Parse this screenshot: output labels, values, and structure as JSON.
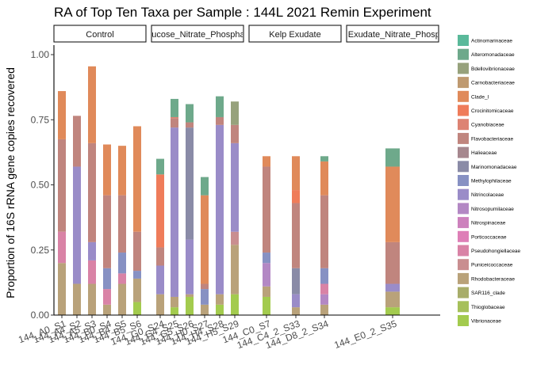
{
  "chart_data": {
    "type": "bar",
    "stacked": true,
    "faceted": true,
    "title": "RA of Top Ten Taxa per Sample : 144L 2021 Remin Experiment",
    "xlabel": "",
    "ylabel": "Proportion of 16S rRNA gene copies recovered",
    "ylim": [
      0,
      1.07
    ],
    "y_ticks": [
      "0.00",
      "0.25",
      "0.50",
      "0.75",
      "1.00"
    ],
    "y_tick_values": [
      0,
      0.25,
      0.5,
      0.75,
      1.0
    ],
    "legend_position": "right",
    "grid": false,
    "facets": [
      {
        "label": "Control",
        "samples": [
          {
            "label": "144_A0_S1",
            "segments": [
              [
                "Rhodobacteraceae",
                0.2
              ],
              [
                "Pseudohongiellaceae",
                0.12
              ],
              [
                "Flavobacteriaceae",
                0.355
              ],
              [
                "Clade_I",
                0.185
              ]
            ]
          },
          {
            "label": "144_A4_S2",
            "segments": [
              [
                "Rhodobacteraceae",
                0.12
              ],
              [
                "Nitrincolaceae",
                0.45
              ],
              [
                "Flavobacteriaceae",
                0.195
              ]
            ]
          },
          {
            "label": "144_A5_S3",
            "segments": [
              [
                "Rhodobacteraceae",
                0.12
              ],
              [
                "Pseudohongiellaceae",
                0.09
              ],
              [
                "Nitrincolaceae",
                0.07
              ],
              [
                "Flavobacteriaceae",
                0.38
              ],
              [
                "Clade_I",
                0.295
              ]
            ]
          },
          {
            "label": "144_B0_S4",
            "segments": [
              [
                "Rhodobacteraceae",
                0.04
              ],
              [
                "Pseudohongiellaceae",
                0.06
              ],
              [
                "Methylophilaceae",
                0.08
              ],
              [
                "Flavobacteriaceae",
                0.28
              ],
              [
                "Clade_I",
                0.195
              ]
            ]
          },
          {
            "label": "144_B4_S5",
            "segments": [
              [
                "Rhodobacteraceae",
                0.12
              ],
              [
                "Pseudohongiellaceae",
                0.04
              ],
              [
                "Methylophilaceae",
                0.08
              ],
              [
                "Flavobacteriaceae",
                0.22
              ],
              [
                "Clade_I",
                0.19
              ]
            ]
          },
          {
            "label": "144_B5_S6",
            "segments": [
              [
                "Vibrionaceae",
                0.05
              ],
              [
                "Rhodobacteraceae",
                0.09
              ],
              [
                "Methylophilaceae",
                0.03
              ],
              [
                "Flavobacteriaceae",
                0.15
              ],
              [
                "Clade_I",
                0.405
              ]
            ]
          }
        ]
      },
      {
        "label": "Glucose_Nitrate_Phosphate",
        "samples": [
          {
            "label": "144_G0_S24",
            "segments": [
              [
                "Rhodobacteraceae",
                0.08
              ],
              [
                "Nitrincolaceae",
                0.11
              ],
              [
                "Flavobacteriaceae",
                0.07
              ],
              [
                "Crocinitomicaceae",
                0.28
              ],
              [
                "Alteromonadaceae",
                0.06
              ]
            ]
          },
          {
            "label": "144_G4_S25",
            "segments": [
              [
                "Vibrionaceae",
                0.03
              ],
              [
                "Rhodobacteraceae",
                0.04
              ],
              [
                "Nitrincolaceae",
                0.65
              ],
              [
                "Flavobacteriaceae",
                0.035
              ],
              [
                "Cyanobiaceae",
                0.005
              ],
              [
                "Alteromonadaceae",
                0.07
              ]
            ]
          },
          {
            "label": "144_G5_S26",
            "segments": [
              [
                "Vibrionaceae",
                0.07
              ],
              [
                "Rhodobacteraceae",
                0.01
              ],
              [
                "Nitrincolaceae",
                0.21
              ],
              [
                "Marinomonadaceae",
                0.43
              ],
              [
                "Flavobacteriaceae",
                0.02
              ],
              [
                "Alteromonadaceae",
                0.07
              ]
            ]
          },
          {
            "label": "144_H0_S27",
            "segments": [
              [
                "Rhodobacteraceae",
                0.04
              ],
              [
                "Methylophilaceae",
                0.06
              ],
              [
                "Flavobacteriaceae",
                0.02
              ],
              [
                "Clade_I",
                0.34
              ],
              [
                "Alteromonadaceae",
                0.07
              ]
            ]
          },
          {
            "label": "144_H4_S28",
            "segments": [
              [
                "Vibrionaceae",
                0.04
              ],
              [
                "Rhodobacteraceae",
                0.04
              ],
              [
                "Nitrincolaceae",
                0.65
              ],
              [
                "Flavobacteriaceae",
                0.03
              ],
              [
                "Alteromonadaceae",
                0.08
              ]
            ]
          },
          {
            "label": "144_H5_S29",
            "segments": [
              [
                "Vibrionaceae",
                0.08
              ],
              [
                "Rhodobacteraceae",
                0.19
              ],
              [
                "Punicei­coccaceae",
                0.05
              ],
              [
                "Nitrincolaceae",
                0.34
              ],
              [
                "Flavobacteriaceae",
                0.07
              ],
              [
                "Bdellovibrionaceae",
                0.09
              ]
            ]
          }
        ]
      },
      {
        "label": "Kelp Exudate",
        "samples": [
          {
            "label": "144_C0_S7",
            "segments": [
              [
                "Vibrionaceae",
                0.07
              ],
              [
                "Rhodobacteraceae",
                0.04
              ],
              [
                "Nitrosopumilaceae",
                0.09
              ],
              [
                "Methylophilaceae",
                0.04
              ],
              [
                "Flavobacteriaceae",
                0.33
              ],
              [
                "Clade_I",
                0.04
              ]
            ]
          },
          {
            "label": "144_C4_2_S33",
            "segments": [
              [
                "Rhodobacteraceae",
                0.03
              ],
              [
                "Nitrincolaceae",
                0.05
              ],
              [
                "Marinomonadaceae",
                0.1
              ],
              [
                "Flavobacteriaceae",
                0.25
              ],
              [
                "Crocinitomicaceae",
                0.05
              ],
              [
                "Clade_I",
                0.13
              ]
            ]
          },
          {
            "label": "144_D8_2_S34",
            "segments": [
              [
                "Rhodobacteraceae",
                0.04
              ],
              [
                "Nitrosopumilaceae",
                0.04
              ],
              [
                "Pseudohongiellaceae",
                0.04
              ],
              [
                "Methylophilaceae",
                0.06
              ],
              [
                "Flavobacteriaceae",
                0.28
              ],
              [
                "Clade_I",
                0.13
              ],
              [
                "Alteromonadaceae",
                0.02
              ]
            ]
          }
        ]
      },
      {
        "label": "Kelp Exudate_Nitrate_Phosphate",
        "samples": [
          {
            "label": "144_E0_2_S35",
            "segments": [
              [
                "Vibrionaceae",
                0.03
              ],
              [
                "Rhodobacteraceae",
                0.06
              ],
              [
                "Nitrincolaceae",
                0.03
              ],
              [
                "Flavobacteriaceae",
                0.16
              ],
              [
                "Clade_I",
                0.29
              ],
              [
                "Alteromonadaceae",
                0.07
              ]
            ]
          }
        ]
      }
    ],
    "legend": [
      {
        "name": "Actinomarinaceae",
        "color": "#5ab99a"
      },
      {
        "name": "Alteromonadaceae",
        "color": "#6ea98b"
      },
      {
        "name": "Bdellovibrionaceae",
        "color": "#97a27c"
      },
      {
        "name": "Carnobacteriaceae",
        "color": "#bf9a70"
      },
      {
        "name": "Clade_I",
        "color": "#e08a5a"
      },
      {
        "name": "Crocinitomicaceae",
        "color": "#ef7c5a"
      },
      {
        "name": "Cyanobiaceae",
        "color": "#dd8373"
      },
      {
        "name": "Flavobacteriaceae",
        "color": "#c0857e"
      },
      {
        "name": "Halieaceae",
        "color": "#a6878e"
      },
      {
        "name": "Marinomonadaceae",
        "color": "#8a8ba7"
      },
      {
        "name": "Methylophilaceae",
        "color": "#8791c3"
      },
      {
        "name": "Nitrincolaceae",
        "color": "#9a8cc8"
      },
      {
        "name": "Nitrosopumilaceae",
        "color": "#b388c4"
      },
      {
        "name": "Nitrospinaceae",
        "color": "#cd81bd"
      },
      {
        "name": "Porticoccaceae",
        "color": "#de7fb7"
      },
      {
        "name": "Pseudohongiellaceae",
        "color": "#d983a6"
      },
      {
        "name": "Puniceicoccaceae",
        "color": "#c98e90"
      },
      {
        "name": "Rhodobacteraceae",
        "color": "#b9a27a"
      },
      {
        "name": "SAR116_clade",
        "color": "#a8ad6a"
      },
      {
        "name": "Thioglobaceae",
        "color": "#a6c05a"
      },
      {
        "name": "Vibrionaceae",
        "color": "#a3cb4e"
      }
    ]
  }
}
